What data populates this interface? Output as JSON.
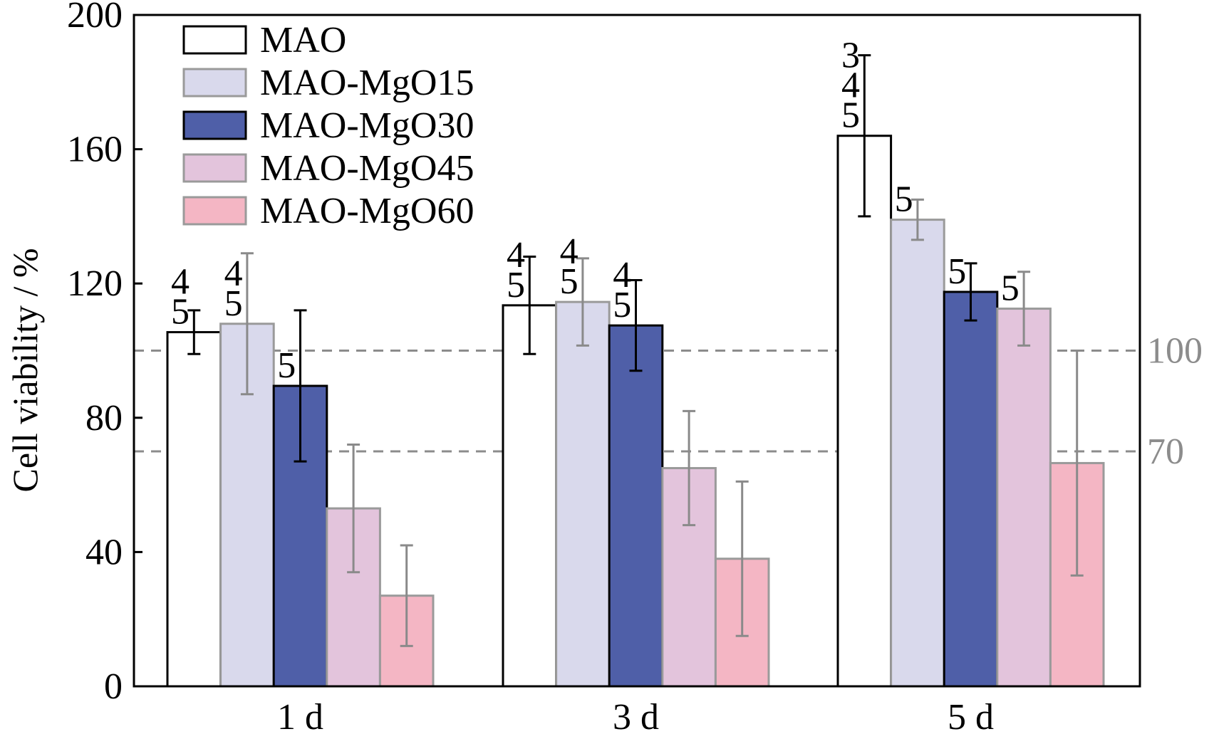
{
  "chart_data": {
    "type": "bar",
    "categories": [
      "1 d",
      "3 d",
      "5 d"
    ],
    "ylabel": "Cell viability / %",
    "xlabel": "",
    "ylim": [
      0,
      200
    ],
    "yticks": [
      0,
      40,
      80,
      120,
      160,
      200
    ],
    "legend_position": "top-left",
    "series": [
      {
        "name": "MAO",
        "color": "#ffffff",
        "values": [
          105.5,
          113.5,
          164.0
        ],
        "errors": [
          6.5,
          14.5,
          24.0
        ],
        "labels": [
          [
            "4",
            "5"
          ],
          [
            "4",
            "5"
          ],
          [
            "3",
            "4",
            "5"
          ]
        ]
      },
      {
        "name": "MAO-MgO15",
        "color": "#d9d9ec",
        "values": [
          108.0,
          114.5,
          139.0
        ],
        "errors": [
          21.0,
          13.0,
          6.0
        ],
        "labels": [
          [
            "4",
            "5"
          ],
          [
            "4",
            "5"
          ],
          [
            "5"
          ]
        ]
      },
      {
        "name": "MAO-MgO30",
        "color": "#4f5fa8",
        "values": [
          89.5,
          107.5,
          117.5
        ],
        "errors": [
          22.5,
          13.5,
          8.5
        ],
        "labels": [
          [
            "5"
          ],
          [
            "4",
            "5"
          ],
          [
            "5"
          ]
        ]
      },
      {
        "name": "MAO-MgO45",
        "color": "#e3c4dc",
        "values": [
          53.0,
          65.0,
          112.5
        ],
        "errors": [
          19.0,
          17.0,
          11.0
        ],
        "labels": [
          [],
          [],
          [
            "5"
          ]
        ]
      },
      {
        "name": "MAO-MgO60",
        "color": "#f4b6c4",
        "values": [
          27.0,
          38.0,
          66.5
        ],
        "errors": [
          15.0,
          23.0,
          33.5
        ],
        "labels": [
          [],
          [],
          []
        ]
      }
    ],
    "reference_lines": [
      {
        "value": 100,
        "label": "100"
      },
      {
        "value": 70,
        "label": "70"
      }
    ]
  }
}
